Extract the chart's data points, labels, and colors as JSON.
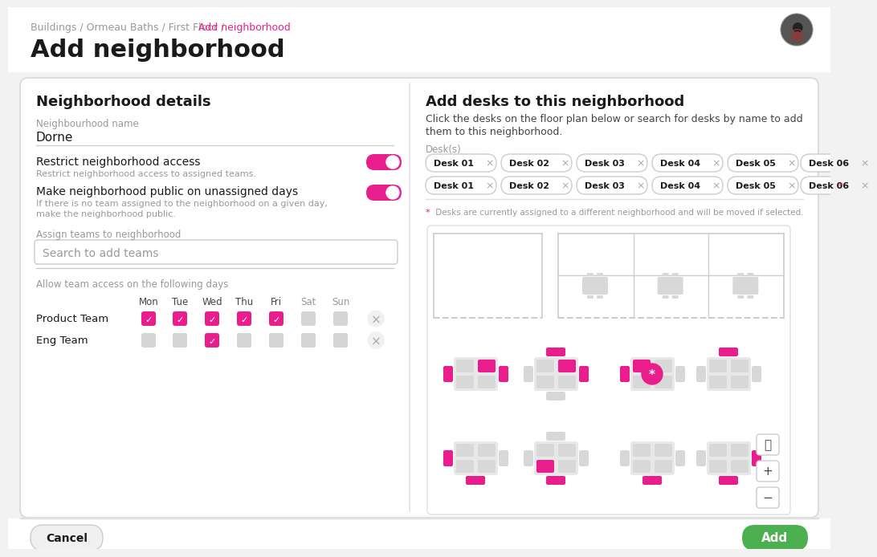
{
  "bg_color": "#f2f2f2",
  "card_color": "#ffffff",
  "pink": "#e91e8c",
  "gray_light": "#e0e0e0",
  "gray_lighter": "#ebebeb",
  "gray_mid": "#999999",
  "gray_dark": "#444444",
  "text_black": "#1a1a1a",
  "green": "#4caf50",
  "breadcrumb_gray": "Buildings / Ormeau Baths / First Floor / ",
  "breadcrumb_pink": "Add neighborhood",
  "page_title": "Add neighborhood",
  "left_panel_title": "Neighborhood details",
  "field_label": "Neighbourhood name",
  "field_value": "Dorne",
  "toggle1_label": "Restrict neighborhood access",
  "toggle1_sub": "Restrict neighborhood access to assigned teams.",
  "toggle2_label": "Make neighborhood public on unassigned days",
  "toggle2_sub1": "If there is no team assigned to the neighborhood on a given day,",
  "toggle2_sub2": "make the neighborhood public.",
  "assign_label": "Assign teams to neighborhood",
  "assign_placeholder": "Search to add teams",
  "access_label": "Allow team access on the following days",
  "days": [
    "Mon",
    "Tue",
    "Wed",
    "Thu",
    "Fri",
    "Sat",
    "Sun"
  ],
  "teams": [
    "Product Team",
    "Eng Team"
  ],
  "product_team_days": [
    true,
    true,
    true,
    true,
    true,
    false,
    false
  ],
  "eng_team_days": [
    false,
    false,
    true,
    false,
    false,
    false,
    false
  ],
  "right_panel_title": "Add desks to this neighborhood",
  "right_panel_sub1": "Click the desks on the floor plan below or search for desks by name to add",
  "right_panel_sub2": "them to this neighborhood.",
  "desks_label": "Desk(s)",
  "desk_row1": [
    "Desk 01",
    "Desk 02",
    "Desk 03",
    "Desk 04",
    "Desk 05",
    "Desk 06"
  ],
  "desk_row2": [
    "Desk 01",
    "Desk 02",
    "Desk 03",
    "Desk 04",
    "Desk 05",
    "Desk 06*"
  ],
  "desk_note": " Desks are currently assigned to a different neighborhood and will be moved if selected.",
  "cancel_label": "Cancel",
  "add_label": "Add"
}
